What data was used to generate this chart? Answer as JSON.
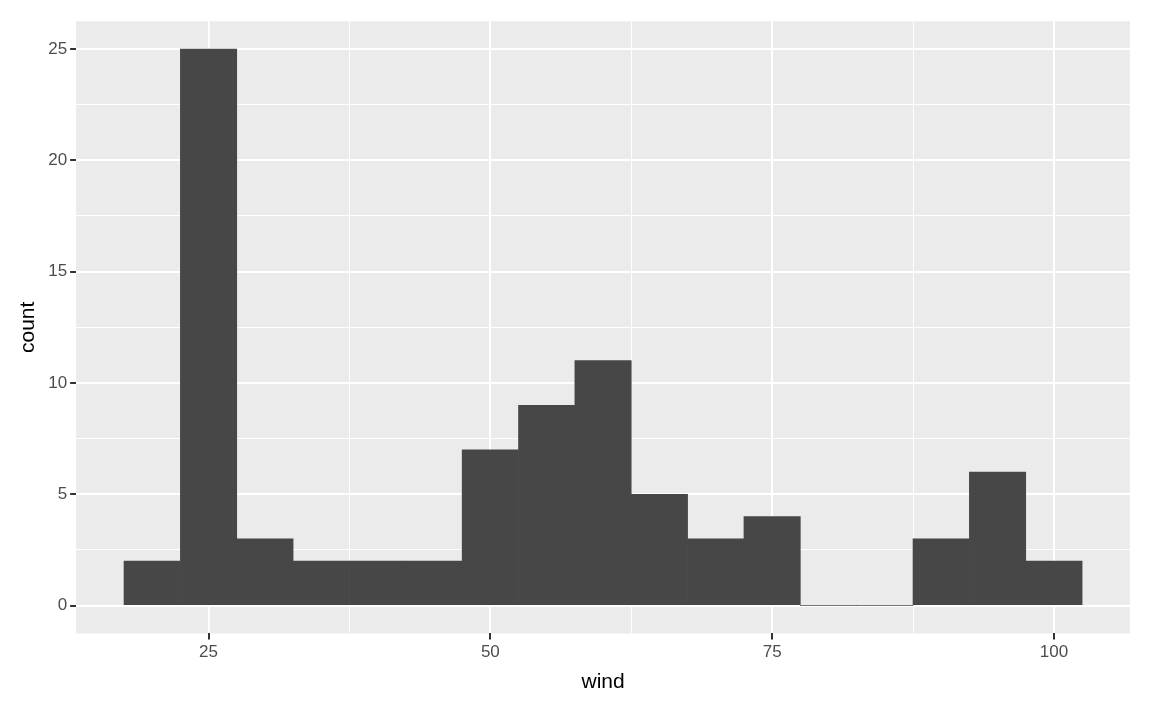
{
  "chart_data": {
    "type": "histogram",
    "xlabel": "wind",
    "ylabel": "count",
    "bins": [
      17.5,
      22.5,
      27.5,
      32.5,
      37.5,
      42.5,
      47.5,
      52.5,
      57.5,
      62.5,
      67.5,
      72.5,
      77.5,
      82.5,
      87.5,
      92.5,
      97.5,
      102.5
    ],
    "values": [
      2,
      25,
      3,
      2,
      2,
      2,
      7,
      9,
      11,
      5,
      3,
      4,
      0,
      0,
      3,
      6,
      2
    ],
    "color": "#474747",
    "xlim": [
      13.25,
      106.75
    ],
    "xticks": [
      {
        "value": 25,
        "label": "25"
      },
      {
        "value": 37.5,
        "label": null
      },
      {
        "value": 50,
        "label": "50"
      },
      {
        "value": 62.5,
        "label": null
      },
      {
        "value": 75,
        "label": "75"
      },
      {
        "value": 87.5,
        "label": null
      },
      {
        "value": 100,
        "label": "100"
      }
    ],
    "ylim": [
      -1.25,
      26.25
    ],
    "yticks": [
      {
        "value": 0,
        "label": "0"
      },
      {
        "value": 2.5,
        "label": null
      },
      {
        "value": 5,
        "label": "5"
      },
      {
        "value": 7.5,
        "label": null
      },
      {
        "value": 10,
        "label": "10"
      },
      {
        "value": 12.5,
        "label": null
      },
      {
        "value": 15,
        "label": "15"
      },
      {
        "value": 17.5,
        "label": null
      },
      {
        "value": 20,
        "label": "20"
      },
      {
        "value": 22.5,
        "label": null
      },
      {
        "value": 25,
        "label": "25"
      }
    ],
    "grid": true,
    "legend": false
  }
}
